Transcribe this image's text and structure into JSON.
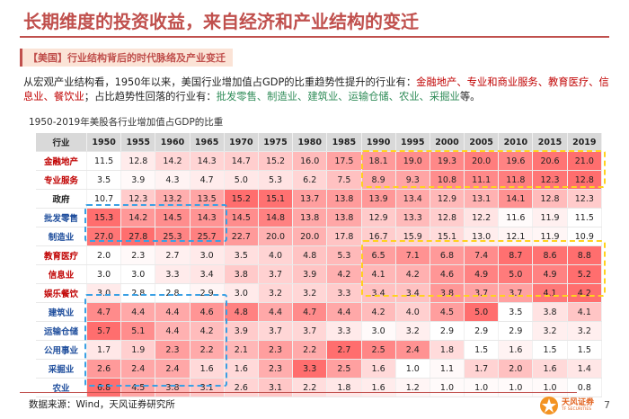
{
  "title": "长期维度的投资收益，来自经济和产业结构的变迁",
  "section_label": "【美国】行业结构背后的时代脉络及产业变迁",
  "paragraph": {
    "p1": "从宏观产业结构看，1950年以来，美国行业增加值占GDP的比重趋势性提升的行业有：",
    "rising": "金融地产、专业和商业服务、教育医疗、信息业、餐饮业",
    "p2": "；占比趋势性回落的行业有：",
    "falling": "批发零售、制造业、建筑业、运输仓储、农业、采掘业",
    "p3": "等。"
  },
  "table_title": "1950-2019年美股各行业增加值占GDP的比重",
  "table": {
    "header_label": "行业",
    "years": [
      "1950",
      "1955",
      "1960",
      "1965",
      "1970",
      "1975",
      "1980",
      "1985",
      "1990",
      "1995",
      "2000",
      "2005",
      "2010",
      "2015",
      "2019"
    ],
    "rows": [
      {
        "name": "金融地产",
        "style": "red",
        "values": [
          "11.5",
          "12.8",
          "14.2",
          "14.3",
          "14.7",
          "15.2",
          "16.0",
          "17.5",
          "18.1",
          "19.0",
          "19.3",
          "20.0",
          "19.6",
          "20.6",
          "21.0"
        ]
      },
      {
        "name": "专业服务",
        "style": "red",
        "values": [
          "3.5",
          "3.9",
          "4.3",
          "4.7",
          "5.0",
          "5.3",
          "6.2",
          "7.5",
          "8.9",
          "9.3",
          "10.8",
          "11.1",
          "11.8",
          "12.3",
          "12.8"
        ]
      },
      {
        "name": "政府",
        "style": "plain",
        "values": [
          "10.7",
          "12.3",
          "13.2",
          "13.5",
          "15.2",
          "15.1",
          "13.7",
          "13.8",
          "13.9",
          "13.4",
          "12.9",
          "13.1",
          "14.1",
          "12.8",
          "12.3"
        ]
      },
      {
        "name": "批发零售",
        "style": "blue",
        "values": [
          "15.3",
          "14.2",
          "14.5",
          "14.3",
          "14.5",
          "14.8",
          "13.8",
          "13.8",
          "12.9",
          "13.3",
          "12.8",
          "12.2",
          "11.6",
          "11.9",
          "11.5"
        ]
      },
      {
        "name": "制造业",
        "style": "blue",
        "values": [
          "27.0",
          "27.8",
          "25.3",
          "25.7",
          "22.7",
          "20.0",
          "20.0",
          "17.8",
          "16.7",
          "15.9",
          "15.1",
          "13.0",
          "12.1",
          "11.9",
          "10.9"
        ]
      },
      {
        "name": "教育医疗",
        "style": "red",
        "values": [
          "2.0",
          "2.3",
          "2.7",
          "3.0",
          "3.5",
          "4.0",
          "4.8",
          "5.3",
          "6.5",
          "7.1",
          "6.8",
          "7.4",
          "8.7",
          "8.6",
          "8.8"
        ]
      },
      {
        "name": "信息业",
        "style": "red",
        "values": [
          "3.0",
          "3.0",
          "3.3",
          "3.4",
          "3.8",
          "3.7",
          "3.9",
          "4.2",
          "4.1",
          "4.2",
          "4.6",
          "4.9",
          "5.0",
          "4.9",
          "5.2"
        ]
      },
      {
        "name": "娱乐餐饮",
        "style": "red",
        "values": [
          "3.0",
          "2.8",
          "2.8",
          "2.9",
          "3.0",
          "3.2",
          "3.2",
          "3.3",
          "3.4",
          "3.4",
          "3.8",
          "3.7",
          "3.7",
          "4.1",
          "4.2"
        ]
      },
      {
        "name": "建筑业",
        "style": "blue",
        "values": [
          "4.7",
          "4.4",
          "4.4",
          "4.6",
          "4.8",
          "4.4",
          "4.7",
          "4.4",
          "4.2",
          "4.0",
          "4.5",
          "5.0",
          "3.5",
          "3.8",
          "4.1"
        ]
      },
      {
        "name": "运输仓储",
        "style": "blue",
        "values": [
          "5.7",
          "5.1",
          "4.4",
          "4.2",
          "3.9",
          "3.7",
          "3.7",
          "3.3",
          "3.0",
          "3.2",
          "2.9",
          "2.9",
          "2.9",
          "3.2",
          "3.2"
        ]
      },
      {
        "name": "公用事业",
        "style": "blue",
        "values": [
          "1.7",
          "1.9",
          "2.3",
          "2.2",
          "2.1",
          "2.3",
          "2.2",
          "2.7",
          "2.5",
          "2.4",
          "1.8",
          "1.5",
          "1.6",
          "1.5",
          "1.5"
        ]
      },
      {
        "name": "采掘业",
        "style": "blue",
        "values": [
          "2.6",
          "2.4",
          "2.4",
          "1.6",
          "1.6",
          "2.3",
          "3.3",
          "2.5",
          "1.6",
          "1.0",
          "1.1",
          "1.7",
          "2.0",
          "1.6",
          "1.4"
        ]
      },
      {
        "name": "农业",
        "style": "blue",
        "values": [
          "6.8",
          "4.5",
          "3.8",
          "3.1",
          "2.6",
          "3.1",
          "2.2",
          "1.8",
          "1.6",
          "1.2",
          "1.0",
          "1.0",
          "1.0",
          "1.0",
          "0.8"
        ]
      }
    ]
  },
  "colors": {
    "accent": "#c0504d",
    "heat_high": "#f08080",
    "heat_low": "#ffffff",
    "highlight_yellow": "#ffd21e",
    "highlight_blue": "#3aa0e4",
    "blue_text": "#1f4e9d",
    "red_text": "#c00000"
  },
  "footer": {
    "source": "数据来源：Wind，天风证券研究所",
    "logo_cn": "天风证券",
    "logo_en": "TF SECURITIES",
    "page": "7"
  }
}
